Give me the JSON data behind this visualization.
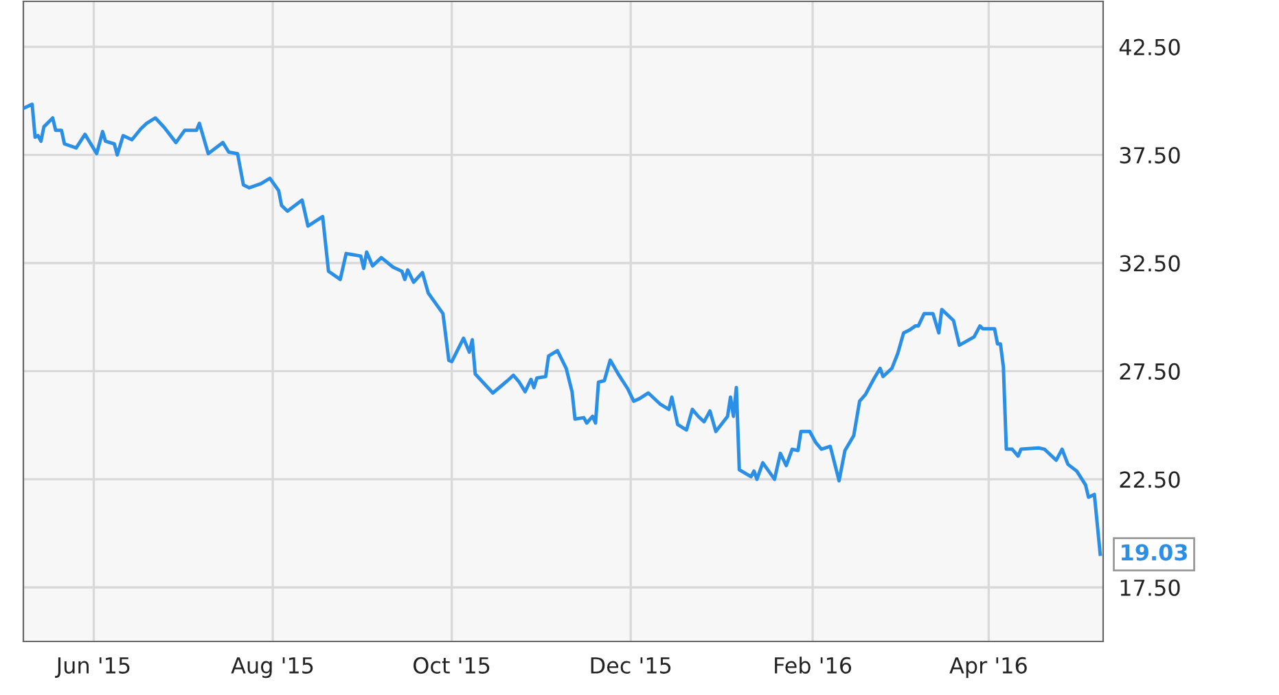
{
  "chart_data": {
    "type": "line",
    "x": [
      "2015-05-08",
      "2015-05-11",
      "2015-05-12",
      "2015-05-13",
      "2015-05-14",
      "2015-05-15",
      "2015-05-18",
      "2015-05-19",
      "2015-05-21",
      "2015-05-22",
      "2015-05-26",
      "2015-05-29",
      "2015-06-02",
      "2015-06-04",
      "2015-06-05",
      "2015-06-08",
      "2015-06-09",
      "2015-06-11",
      "2015-06-14",
      "2015-06-17",
      "2015-06-19",
      "2015-06-22",
      "2015-06-25",
      "2015-06-29",
      "2015-07-02",
      "2015-07-06",
      "2015-07-07",
      "2015-07-10",
      "2015-07-15",
      "2015-07-17",
      "2015-07-20",
      "2015-07-22",
      "2015-07-24",
      "2015-07-28",
      "2015-07-31",
      "2015-08-03",
      "2015-08-04",
      "2015-08-06",
      "2015-08-11",
      "2015-08-13",
      "2015-08-18",
      "2015-08-20",
      "2015-08-24",
      "2015-08-26",
      "2015-08-31",
      "2015-09-01",
      "2015-09-02",
      "2015-09-04",
      "2015-09-07",
      "2015-09-11",
      "2015-09-14",
      "2015-09-15",
      "2015-09-16",
      "2015-09-18",
      "2015-09-21",
      "2015-09-23",
      "2015-09-28",
      "2015-09-30",
      "2015-10-01",
      "2015-10-05",
      "2015-10-07",
      "2015-10-08",
      "2015-10-09",
      "2015-10-15",
      "2015-10-20",
      "2015-10-22",
      "2015-10-24",
      "2015-10-26",
      "2015-10-28",
      "2015-10-29",
      "2015-10-30",
      "2015-11-02",
      "2015-11-03",
      "2015-11-06",
      "2015-11-09",
      "2015-11-11",
      "2015-11-12",
      "2015-11-15",
      "2015-11-16",
      "2015-11-18",
      "2015-11-19",
      "2015-11-20",
      "2015-11-22",
      "2015-11-24",
      "2015-11-27",
      "2015-11-30",
      "2015-12-02",
      "2015-12-04",
      "2015-12-07",
      "2015-12-11",
      "2015-12-14",
      "2015-12-15",
      "2015-12-17",
      "2015-12-20",
      "2015-12-22",
      "2015-12-24",
      "2015-12-26",
      "2015-12-28",
      "2015-12-30",
      "2016-01-03",
      "2016-01-04",
      "2016-01-05",
      "2016-01-06",
      "2016-01-07",
      "2016-01-11",
      "2016-01-12",
      "2016-01-13",
      "2016-01-15",
      "2016-01-19",
      "2016-01-21",
      "2016-01-23",
      "2016-01-25",
      "2016-01-27",
      "2016-01-28",
      "2016-01-31",
      "2016-02-02",
      "2016-02-04",
      "2016-02-07",
      "2016-02-10",
      "2016-02-12",
      "2016-02-15",
      "2016-02-17",
      "2016-02-19",
      "2016-02-22",
      "2016-02-24",
      "2016-02-25",
      "2016-02-28",
      "2016-03-01",
      "2016-03-03",
      "2016-03-05",
      "2016-03-07",
      "2016-03-08",
      "2016-03-10",
      "2016-03-13",
      "2016-03-15",
      "2016-03-16",
      "2016-03-20",
      "2016-03-22",
      "2016-03-27",
      "2016-03-29",
      "2016-03-30",
      "2016-04-03",
      "2016-04-04",
      "2016-04-05",
      "2016-04-06",
      "2016-04-07",
      "2016-04-09",
      "2016-04-11",
      "2016-04-12",
      "2016-04-18",
      "2016-04-20",
      "2016-04-24",
      "2016-04-26",
      "2016-04-28",
      "2016-05-01",
      "2016-05-04",
      "2016-05-05",
      "2016-05-07",
      "2016-05-09"
    ],
    "series": [
      {
        "color": "#2b8fe6",
        "values": [
          39.65,
          39.84,
          38.32,
          38.39,
          38.13,
          38.8,
          39.21,
          38.64,
          38.64,
          38.01,
          37.82,
          38.45,
          37.56,
          38.58,
          38.13,
          38.01,
          37.5,
          38.39,
          38.2,
          38.7,
          38.96,
          39.21,
          38.77,
          38.07,
          38.64,
          38.64,
          38.96,
          37.56,
          38.07,
          37.63,
          37.56,
          36.11,
          35.98,
          36.17,
          36.42,
          35.85,
          35.16,
          34.9,
          35.41,
          34.21,
          34.65,
          32.12,
          31.74,
          32.94,
          32.82,
          32.25,
          33.01,
          32.37,
          32.75,
          32.31,
          32.12,
          31.74,
          32.18,
          31.61,
          32.06,
          31.11,
          30.16,
          28.0,
          27.94,
          29.02,
          28.38,
          28.95,
          27.37,
          26.49,
          27.06,
          27.31,
          26.99,
          26.55,
          27.12,
          26.74,
          27.18,
          27.25,
          28.2,
          28.45,
          27.63,
          26.55,
          25.28,
          25.35,
          25.1,
          25.41,
          25.1,
          26.99,
          27.06,
          28.01,
          27.31,
          26.68,
          26.11,
          26.23,
          26.49,
          25.98,
          25.73,
          26.3,
          25.03,
          24.78,
          25.73,
          25.41,
          25.16,
          25.66,
          24.71,
          25.41,
          26.3,
          25.41,
          26.74,
          22.94,
          22.62,
          22.88,
          22.5,
          23.26,
          22.5,
          23.7,
          23.13,
          23.89,
          23.83,
          24.71,
          24.71,
          24.21,
          23.89,
          24.02,
          22.43,
          23.83,
          24.52,
          26.11,
          26.42,
          27.18,
          27.63,
          27.25,
          27.63,
          28.32,
          29.27,
          29.4,
          29.59,
          29.59,
          30.16,
          30.16,
          29.27,
          30.35,
          29.84,
          28.7,
          29.08,
          29.59,
          29.46,
          29.46,
          28.76,
          28.76,
          27.69,
          23.89,
          23.89,
          23.57,
          23.89,
          23.95,
          23.89,
          23.38,
          23.89,
          23.19,
          22.88,
          22.24,
          21.67,
          21.8,
          19.03
        ]
      }
    ],
    "xlim": [
      "2015-05-08",
      "2016-05-10"
    ],
    "xticks": [
      {
        "value": "2015-06-01",
        "label": "Jun '15"
      },
      {
        "value": "2015-08-01",
        "label": "Aug '15"
      },
      {
        "value": "2015-10-01",
        "label": "Oct '15"
      },
      {
        "value": "2015-12-01",
        "label": "Dec '15"
      },
      {
        "value": "2016-02-01",
        "label": "Feb '16"
      },
      {
        "value": "2016-04-01",
        "label": "Apr '16"
      }
    ],
    "ylim": [
      15.0,
      44.6
    ],
    "yticks": [
      {
        "value": 17.5,
        "label": "17.50"
      },
      {
        "value": 22.5,
        "label": "22.50"
      },
      {
        "value": 27.5,
        "label": "27.50"
      },
      {
        "value": 32.5,
        "label": "32.50"
      },
      {
        "value": 37.5,
        "label": "37.50"
      },
      {
        "value": 42.5,
        "label": "42.50"
      }
    ],
    "annotations": [
      {
        "text": "19.03",
        "x": "2016-05-09",
        "y": 19.03
      }
    ],
    "grid": true,
    "legend": false,
    "marker": "none",
    "line_style": "solid"
  }
}
